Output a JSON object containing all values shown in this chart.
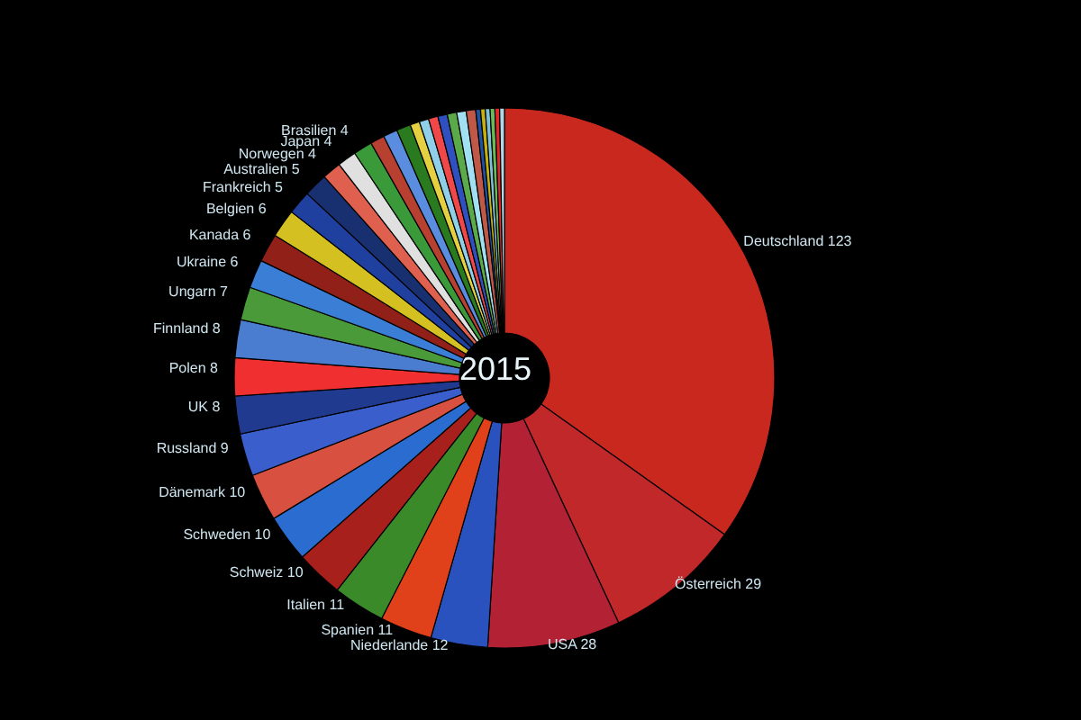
{
  "chart_data": {
    "type": "donut",
    "title": "2015",
    "categories": [
      "Deutschland",
      "Österreich",
      "USA",
      "Niederlande",
      "Spanien",
      "Italien",
      "Schweiz",
      "Schweden",
      "Dänemark",
      "Russland",
      "UK",
      "Polen",
      "Finnland",
      "Ungarn",
      "Ukraine",
      "Kanada",
      "Belgien",
      "Frankreich",
      "Australien",
      "Norwegen",
      "Japan",
      "Brasilien",
      null,
      null,
      null,
      null,
      null,
      null,
      null,
      null,
      null,
      null,
      null,
      null,
      null,
      null,
      null,
      null
    ],
    "values": [
      123,
      29,
      28,
      12,
      11,
      11,
      10,
      10,
      10,
      9,
      8,
      8,
      8,
      7,
      6,
      6,
      6,
      5,
      5,
      4,
      4,
      4,
      3,
      3,
      3,
      2,
      2,
      2,
      2,
      2,
      2,
      2,
      1,
      1,
      1,
      1,
      1,
      1
    ],
    "value_labels": [
      "123",
      "29",
      "28",
      "12",
      "11",
      "11",
      "10",
      "10",
      "10",
      "9",
      "8",
      "8",
      "8",
      "7",
      "6",
      "6",
      "6",
      "5",
      "5",
      "4",
      "4",
      "4",
      null,
      null,
      null,
      null,
      null,
      null,
      null,
      null,
      null,
      null,
      null,
      null,
      null,
      null,
      null,
      null
    ],
    "colors": [
      "#c8281e",
      "#c0282a",
      "#b22234",
      "#2a52be",
      "#e0401a",
      "#3a8a2a",
      "#a8201c",
      "#2a6cd0",
      "#d85040",
      "#3a5fcd",
      "#1f3a8f",
      "#f03030",
      "#4a7ccf",
      "#4a9a3a",
      "#3a7fd5",
      "#902018",
      "#d4c020",
      "#2040a0",
      "#18306f",
      "#e06050",
      "#e0e0e0",
      "#3a9a3a",
      "#b84030",
      "#5a8ce0",
      "#2a7a20",
      "#e4d040",
      "#8fd0e8",
      "#f04848",
      "#3050c0",
      "#5aaa4a",
      "#a0e0f0",
      "#c05848",
      "#2050a0",
      "#c4b010",
      "#7fc0d8",
      "#6aba5a",
      "#e02828",
      "#b0d8e8"
    ],
    "legend": false
  }
}
